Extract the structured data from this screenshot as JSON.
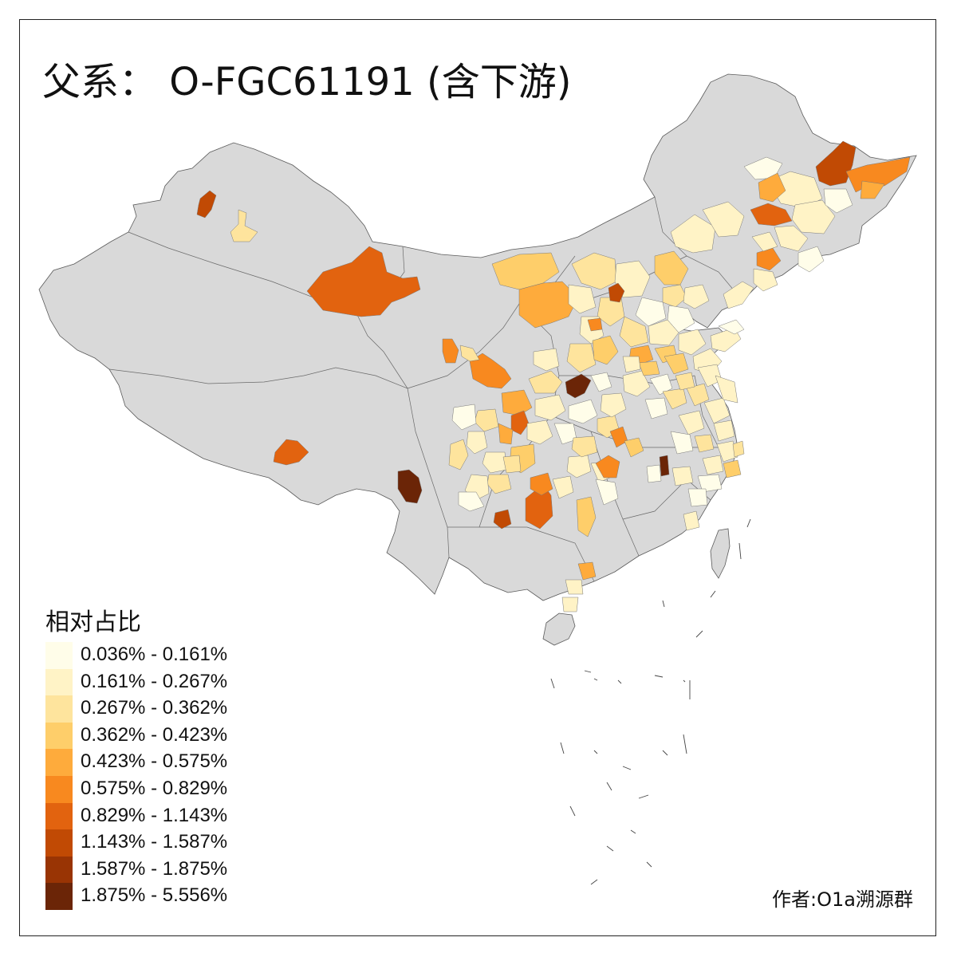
{
  "title": "父系： O-FGC61191 (含下游)",
  "legend": {
    "title": "相对占比",
    "items": [
      {
        "label": "0.036% - 0.161%",
        "color": "#fffde9"
      },
      {
        "label": "0.161% - 0.267%",
        "color": "#fff3c6"
      },
      {
        "label": "0.267% - 0.362%",
        "color": "#fee49d"
      },
      {
        "label": "0.362% - 0.423%",
        "color": "#fece6a"
      },
      {
        "label": "0.423% - 0.575%",
        "color": "#feab3c"
      },
      {
        "label": "0.575% - 0.829%",
        "color": "#f8891f"
      },
      {
        "label": "0.829% - 1.143%",
        "color": "#e2630f"
      },
      {
        "label": "1.143% - 1.587%",
        "color": "#c14a04"
      },
      {
        "label": "1.587% - 1.875%",
        "color": "#993404"
      },
      {
        "label": "1.875% - 5.556%",
        "color": "#6b2507"
      }
    ]
  },
  "no_data_color": "#d9d9d9",
  "author": "作者:O1a溯源群"
}
